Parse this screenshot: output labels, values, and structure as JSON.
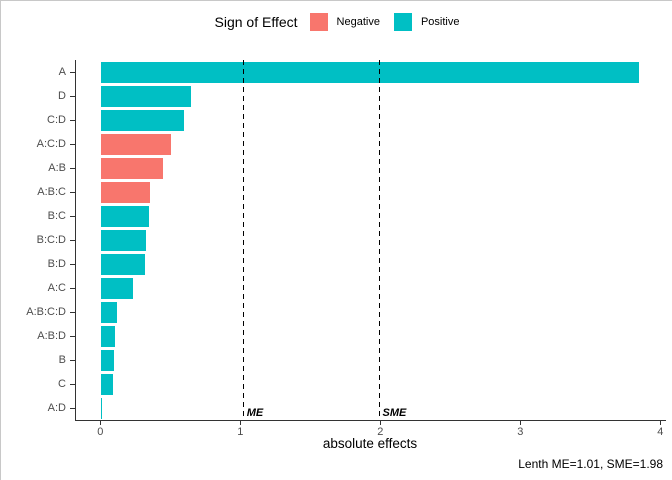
{
  "chart_data": {
    "type": "bar",
    "orientation": "horizontal",
    "legend_title": "Sign of Effect",
    "legend": [
      {
        "label": "Negative",
        "color": "#F8766D"
      },
      {
        "label": "Positive",
        "color": "#00BFC4"
      }
    ],
    "categories": [
      "A",
      "D",
      "C:D",
      "A:C:D",
      "A:B",
      "A:B:C",
      "B:C",
      "B:C:D",
      "B:D",
      "A:C",
      "A:B:C:D",
      "A:B:D",
      "B",
      "C",
      "A:D"
    ],
    "series": [
      {
        "name": "absolute effect",
        "values": [
          3.84,
          0.64,
          0.59,
          0.5,
          0.44,
          0.35,
          0.34,
          0.32,
          0.31,
          0.23,
          0.11,
          0.1,
          0.09,
          0.085,
          0.005
        ]
      }
    ],
    "signs": [
      "Positive",
      "Positive",
      "Positive",
      "Negative",
      "Negative",
      "Negative",
      "Positive",
      "Positive",
      "Positive",
      "Positive",
      "Positive",
      "Positive",
      "Positive",
      "Positive",
      "Positive"
    ],
    "xlabel": "absolute effects",
    "xticks": [
      "0",
      "1",
      "2",
      "3",
      "4"
    ],
    "xlim": [
      0,
      4
    ],
    "grid": false,
    "legend_position": "top",
    "reference_lines": [
      {
        "label": "ME",
        "value": 1.01
      },
      {
        "label": "SME",
        "value": 1.98
      }
    ],
    "caption": "Lenth ME=1.01, SME=1.98",
    "colors": {
      "negative": "#F8766D",
      "positive": "#00BFC4",
      "axis_line": "#333333",
      "axis_text": "#4d4d4d"
    }
  }
}
